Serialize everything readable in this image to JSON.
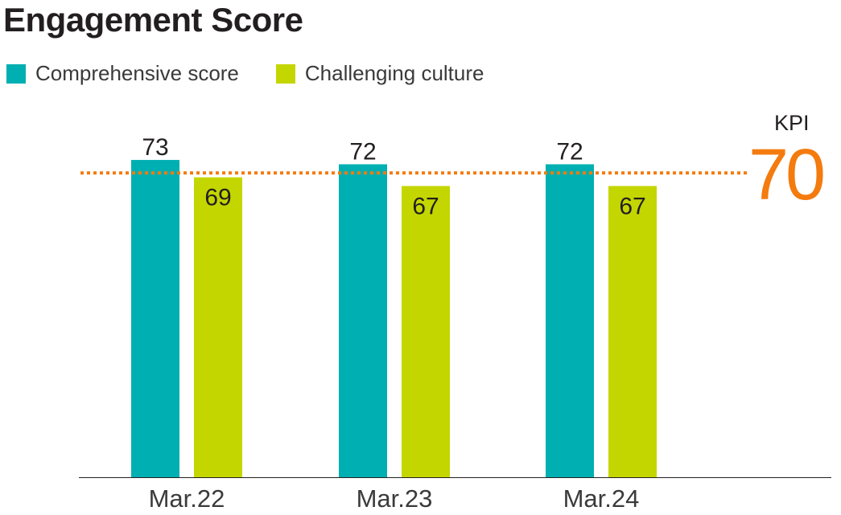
{
  "chart_data": {
    "type": "bar",
    "title": "Engagement Score",
    "categories": [
      "Mar.22",
      "Mar.23",
      "Mar.24"
    ],
    "series": [
      {
        "name": "Comprehensive score",
        "values": [
          73,
          72,
          72
        ],
        "color": "#00afb1"
      },
      {
        "name": "Challenging culture",
        "values": [
          69,
          67,
          67
        ],
        "color": "#c4d600"
      }
    ],
    "ylim": [
      0,
      100
    ],
    "grid": false,
    "legend_position": "top-left",
    "reference_line": {
      "label": "KPI",
      "value": 70,
      "display": "70",
      "color": "#f47b0e",
      "style": "dotted"
    }
  }
}
